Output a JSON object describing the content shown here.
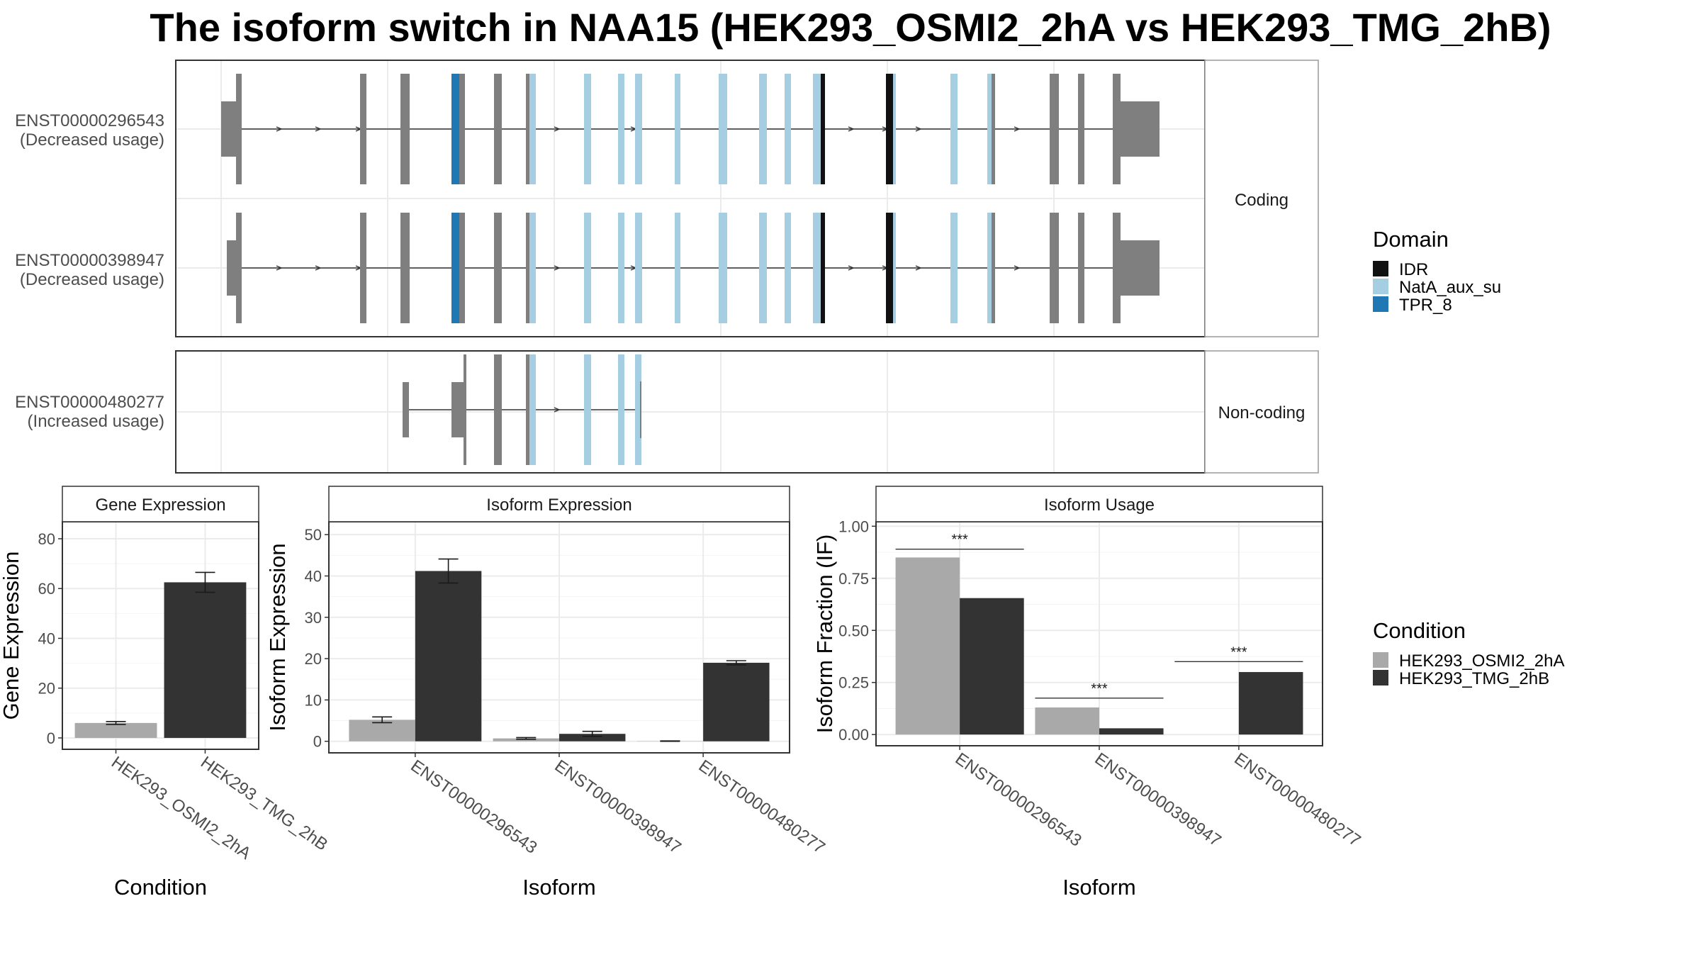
{
  "title": "The isoform switch in NAA15 (HEK293_OSMI2_2hA vs HEK293_TMG_2hB)",
  "colors": {
    "exon": "#7f7f7f",
    "IDR": "#111111",
    "NatA_aux_su": "#a6cee3",
    "TPR_8": "#1f78b4",
    "osmi": "#a9a9a9",
    "tmg": "#333333",
    "grid": "#ebebeb",
    "strip_fill": "#ffffff",
    "panel_border": "#333333"
  },
  "structure": {
    "facets": [
      "Coding",
      "Non-coding"
    ],
    "isoforms": [
      {
        "id": "ENST00000296543",
        "usage": "(Decreased usage)",
        "facet": "Coding"
      },
      {
        "id": "ENST00000398947",
        "usage": "(Decreased usage)",
        "facet": "Coding"
      },
      {
        "id": "ENST00000480277",
        "usage": "(Increased usage)",
        "facet": "Non-coding"
      }
    ],
    "legend": {
      "title": "Domain",
      "items": [
        {
          "label": "IDR",
          "color_key": "IDR"
        },
        {
          "label": "NatA_aux_su",
          "color_key": "NatA_aux_su"
        },
        {
          "label": "TPR_8",
          "color_key": "TPR_8"
        }
      ]
    }
  },
  "chart_data": [
    {
      "type": "bar",
      "strip": "Gene Expression",
      "xlabel": "Condition",
      "ylabel": "Gene Expression",
      "ylim": [
        0,
        85
      ],
      "yticks": [
        0,
        20,
        40,
        60,
        80
      ],
      "categories": [
        "HEK293_OSMI2_2hA",
        "HEK293_TMG_2hB"
      ],
      "values": [
        6,
        62.5
      ],
      "errors": [
        0.6,
        4
      ]
    },
    {
      "type": "bar",
      "strip": "Isoform Expression",
      "xlabel": "Isoform",
      "ylabel": "Isoform Expression",
      "ylim": [
        0,
        52
      ],
      "yticks": [
        0,
        10,
        20,
        30,
        40,
        50
      ],
      "categories": [
        "ENST00000296543",
        "ENST00000398947",
        "ENST00000480277"
      ],
      "series": [
        {
          "name": "HEK293_OSMI2_2hA",
          "values": [
            5.2,
            0.7,
            0.05
          ],
          "errors": [
            0.7,
            0.2,
            0.05
          ]
        },
        {
          "name": "HEK293_TMG_2hB",
          "values": [
            41.2,
            1.8,
            19.0
          ],
          "errors": [
            2.9,
            0.6,
            0.5
          ]
        }
      ]
    },
    {
      "type": "bar",
      "strip": "Isoform Usage",
      "xlabel": "Isoform",
      "ylabel": "Isoform Fraction (IF)",
      "ylim": [
        0,
        1.0
      ],
      "yticks": [
        "0.00",
        "0.25",
        "0.50",
        "0.75",
        "1.00"
      ],
      "categories": [
        "ENST00000296543",
        "ENST00000398947",
        "ENST00000480277"
      ],
      "series": [
        {
          "name": "HEK293_OSMI2_2hA",
          "values": [
            0.85,
            0.13,
            0.0
          ]
        },
        {
          "name": "HEK293_TMG_2hB",
          "values": [
            0.655,
            0.03,
            0.3
          ]
        }
      ],
      "significance": [
        "***",
        "***",
        "***"
      ],
      "significance_y": [
        0.89,
        0.175,
        0.35
      ]
    }
  ],
  "condition_legend": {
    "title": "Condition",
    "items": [
      {
        "label": "HEK293_OSMI2_2hA",
        "color_key": "osmi"
      },
      {
        "label": "HEK293_TMG_2hB",
        "color_key": "tmg"
      }
    ]
  }
}
